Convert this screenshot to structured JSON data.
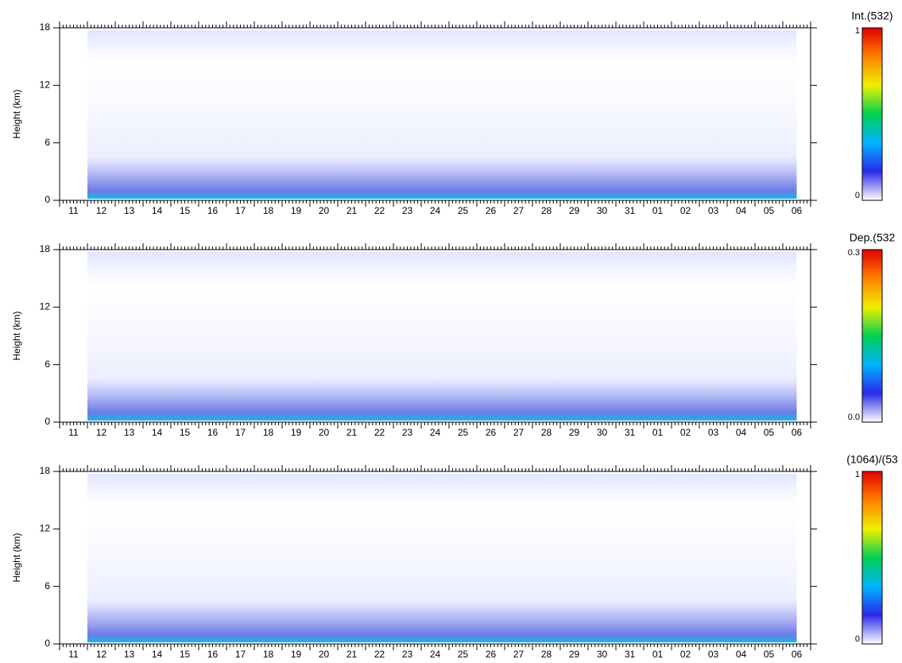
{
  "chart_data": [
    {
      "type": "heatmap",
      "ylabel": "Height (km)",
      "ylim": [
        0,
        18
      ],
      "yticks": [
        0,
        6,
        12,
        18
      ],
      "categories": [
        "11",
        "12",
        "13",
        "14",
        "15",
        "16",
        "17",
        "18",
        "19",
        "20",
        "21",
        "22",
        "23",
        "24",
        "25",
        "26",
        "27",
        "28",
        "29",
        "30",
        "31",
        "01",
        "02",
        "03",
        "04",
        "05",
        "06"
      ],
      "colorbar": {
        "label": "Int.(532)",
        "lim": [
          0,
          1
        ],
        "ticks": [
          0,
          1
        ],
        "colors": [
          "#ffffff",
          "#2a2ae8",
          "#00b4ff",
          "#00d050",
          "#f0f000",
          "#ff8000",
          "#e00000"
        ]
      }
    },
    {
      "type": "heatmap",
      "ylabel": "Height (km)",
      "ylim": [
        0,
        18
      ],
      "yticks": [
        0,
        6,
        12,
        18
      ],
      "categories": [
        "11",
        "12",
        "13",
        "14",
        "15",
        "16",
        "17",
        "18",
        "19",
        "20",
        "21",
        "22",
        "23",
        "24",
        "25",
        "26",
        "27",
        "28",
        "29",
        "30",
        "31",
        "01",
        "02",
        "03",
        "04",
        "05",
        "06"
      ],
      "colorbar": {
        "label": "Dep.(532",
        "lim": [
          0,
          0.3
        ],
        "ticks": [
          {
            "value": 0,
            "label": "0.0"
          },
          0.3
        ],
        "colors": [
          "#ffffff",
          "#2a2ae8",
          "#00b4ff",
          "#00d050",
          "#f0f000",
          "#ff8000",
          "#e00000"
        ]
      }
    },
    {
      "type": "heatmap",
      "ylabel": "Height (km)",
      "ylim": [
        0,
        18
      ],
      "yticks": [
        0,
        6,
        12,
        18
      ],
      "categories": [
        "11",
        "12",
        "13",
        "14",
        "15",
        "16",
        "17",
        "18",
        "19",
        "20",
        "21",
        "22",
        "23",
        "24",
        "25",
        "26",
        "27",
        "28",
        "29",
        "30",
        "31",
        "01",
        "02",
        "03",
        "04",
        "05",
        "06"
      ],
      "colorbar": {
        "label": "(1064)/(53",
        "lim": [
          0,
          1
        ],
        "ticks": [
          0,
          1
        ],
        "colors": [
          "#ffffff",
          "#2a2ae8",
          "#00b4ff",
          "#00d050",
          "#f0f000",
          "#ff8000",
          "#e00000"
        ]
      }
    }
  ]
}
